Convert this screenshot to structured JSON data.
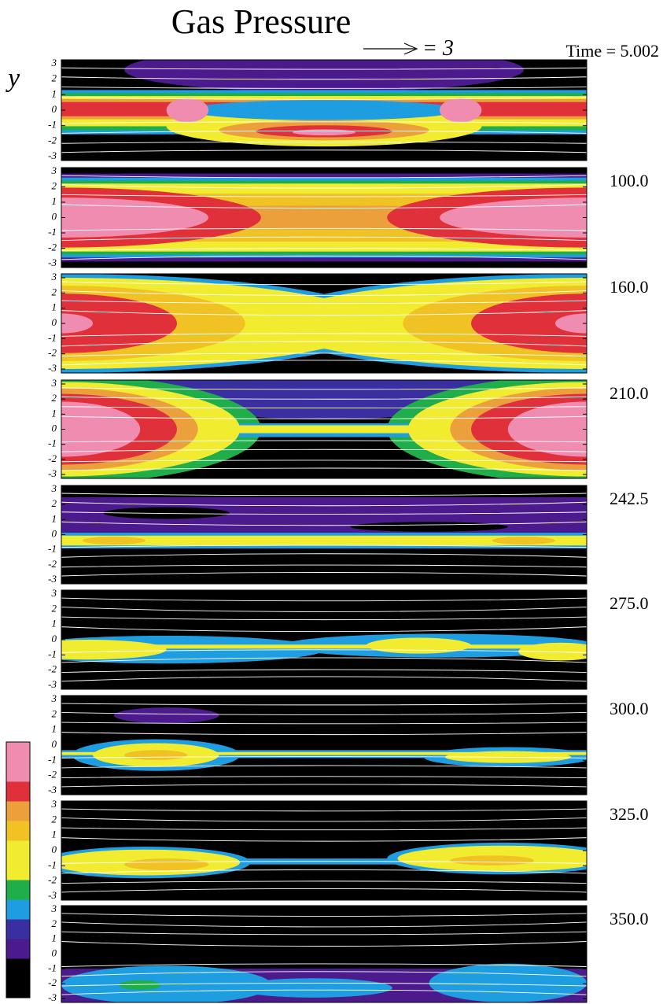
{
  "title": "Gas Pressure",
  "vector_scale": "= 3",
  "y_label": "y",
  "y_ticks": [
    "3",
    "2",
    "1",
    "0",
    "-1",
    "-2",
    "-3"
  ],
  "panels": [
    {
      "time": "Time = 5.002"
    },
    {
      "time": "100.0"
    },
    {
      "time": "160.0"
    },
    {
      "time": "210.0"
    },
    {
      "time": "242.5"
    },
    {
      "time": "275.0"
    },
    {
      "time": "300.0"
    },
    {
      "time": "325.0"
    },
    {
      "time": "350.0"
    }
  ]
}
